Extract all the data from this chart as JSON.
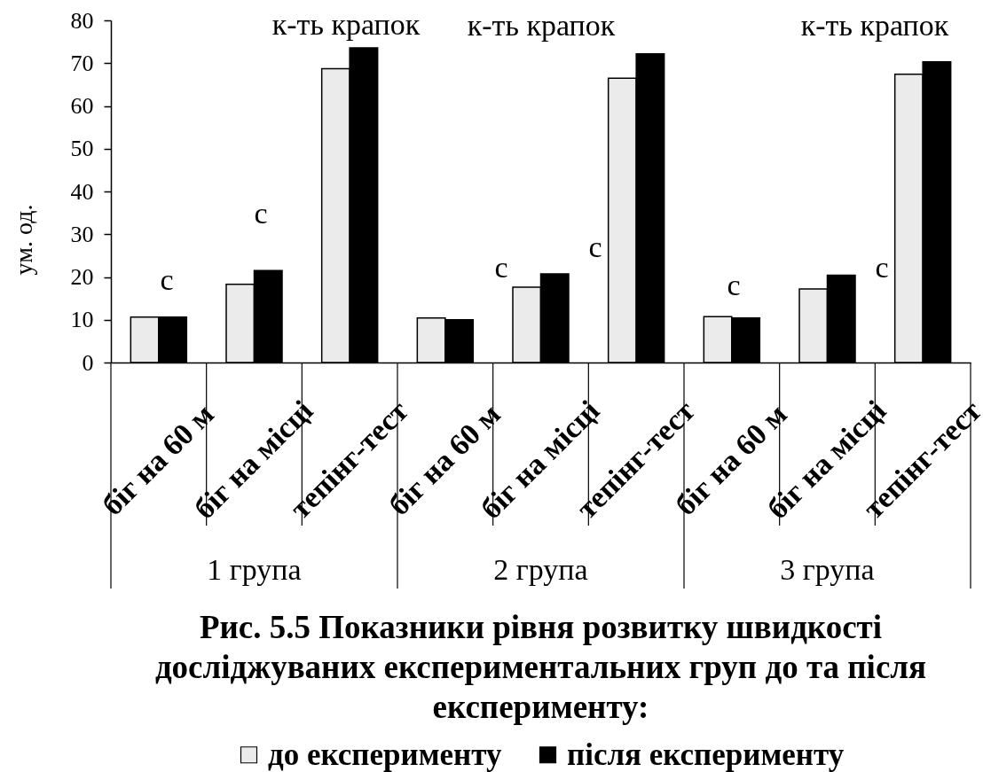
{
  "chart_data": {
    "type": "bar",
    "title": "Рис. 5.5 Показники рівня розвитку швидкості досліджуваних експериментальних груп до та після експерименту:",
    "ylabel": "ум. од.",
    "categories": [
      "біг на 60 м",
      "біг на місці",
      "тепінг-тест",
      "біг на 60 м",
      "біг на місці",
      "тепінг-тест",
      "біг на 60 м",
      "біг на місці",
      "тепінг-тест"
    ],
    "series": [
      {
        "name": "до експерименту",
        "color": "#ebebeb",
        "values": [
          10.6,
          18.3,
          68.7,
          10.4,
          17.6,
          66.5,
          10.7,
          17.2,
          67.4
        ]
      },
      {
        "name": "після експерименту",
        "color": "#000000",
        "values": [
          10.6,
          21.5,
          73.6,
          10.0,
          20.7,
          72.2,
          10.4,
          20.4,
          70.3
        ]
      }
    ],
    "ylim": [
      0,
      80
    ],
    "yticks": [
      0,
      10,
      20,
      30,
      40,
      50,
      60,
      70,
      80
    ],
    "legend": "bottom",
    "annotations": [
      "с",
      "с",
      "к-ть крапок",
      "с",
      "к-ть крапок",
      "с",
      "с",
      "с",
      "к-ть крапок",
      "1 група",
      "2 група",
      "3 група"
    ]
  }
}
